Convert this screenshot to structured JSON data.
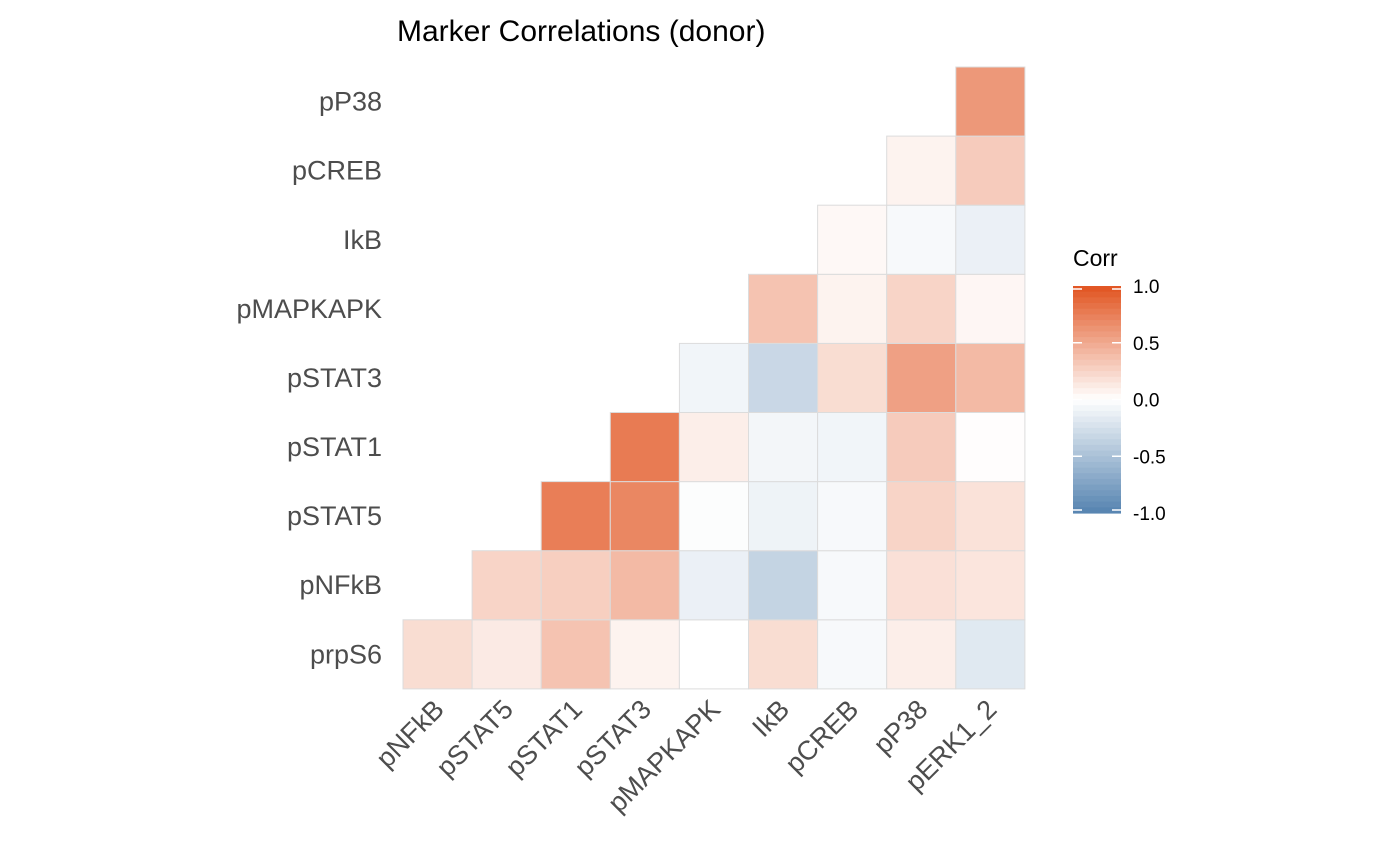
{
  "chart_data": {
    "type": "heatmap",
    "title": "Marker Correlations (donor)",
    "x_categories": [
      "pNFkB",
      "pSTAT5",
      "pSTAT1",
      "pSTAT3",
      "pMAPKAPK",
      "IkB",
      "pCREB",
      "pP38",
      "pERK1_2"
    ],
    "y_categories": [
      "prpS6",
      "pNFkB",
      "pSTAT5",
      "pSTAT1",
      "pSTAT3",
      "pMAPKAPK",
      "IkB",
      "pCREB",
      "pP38"
    ],
    "values": [
      [
        0.2,
        0.12,
        0.35,
        0.07,
        0.0,
        0.2,
        -0.05,
        0.1,
        -0.18
      ],
      [
        null,
        0.25,
        0.28,
        0.4,
        -0.12,
        -0.35,
        -0.05,
        0.18,
        0.15
      ],
      [
        null,
        null,
        0.75,
        0.7,
        -0.02,
        -0.1,
        -0.05,
        0.25,
        0.17
      ],
      [
        null,
        null,
        null,
        0.77,
        0.1,
        -0.07,
        -0.08,
        0.3,
        0.01
      ],
      [
        null,
        null,
        null,
        null,
        -0.08,
        -0.32,
        0.2,
        0.55,
        0.4
      ],
      [
        null,
        null,
        null,
        null,
        null,
        0.35,
        0.07,
        0.25,
        0.05
      ],
      [
        null,
        null,
        null,
        null,
        null,
        null,
        0.04,
        -0.05,
        -0.12
      ],
      [
        null,
        null,
        null,
        null,
        null,
        null,
        null,
        0.07,
        0.3
      ],
      [
        null,
        null,
        null,
        null,
        null,
        null,
        null,
        null,
        0.6
      ]
    ],
    "legend": {
      "title": "Corr",
      "range": [
        -1.0,
        1.0
      ],
      "ticks": [
        "1.0",
        "0.5",
        "0.0",
        "-0.5",
        "-1.0"
      ],
      "tick_values": [
        1.0,
        0.5,
        0.0,
        -0.5,
        -1.0
      ],
      "placement": "right"
    },
    "colors": {
      "high": "#e1531f",
      "mid": "#ffffff",
      "low": "#5583b0",
      "grid_line": "#dcdcdc",
      "title_text": "#000000",
      "tick_text": "#4d4d4d"
    },
    "grid": false
  }
}
